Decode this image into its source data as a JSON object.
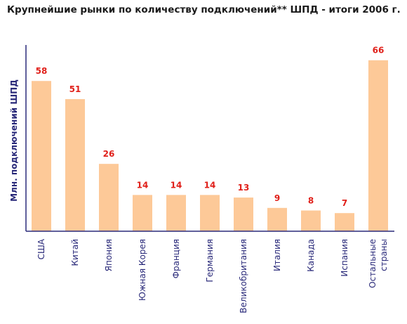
{
  "chart_data": {
    "type": "bar",
    "title": "Крупнейшие рынки по количеству подключений** ШПД - итоги 2006 г.",
    "ylabel": "Млн. подключений ШПД",
    "xlabel": "",
    "ylim": [
      0,
      70
    ],
    "grid": false,
    "legend": "none",
    "categories": [
      [
        "США"
      ],
      [
        "Китай"
      ],
      [
        "Япония"
      ],
      [
        "Южная Корея"
      ],
      [
        "Франция"
      ],
      [
        "Германия"
      ],
      [
        "Великобритания"
      ],
      [
        "Италия"
      ],
      [
        "Канада"
      ],
      [
        "Испания"
      ],
      [
        "Остальные",
        "страны"
      ]
    ],
    "values": [
      58,
      51,
      26,
      14,
      14,
      14,
      13,
      9,
      8,
      7,
      66
    ],
    "colors": {
      "bar_fill": "#fdc998",
      "value_label": "#e0201a",
      "axis": "#2a2a7a",
      "title": "#1a1a1a"
    }
  }
}
